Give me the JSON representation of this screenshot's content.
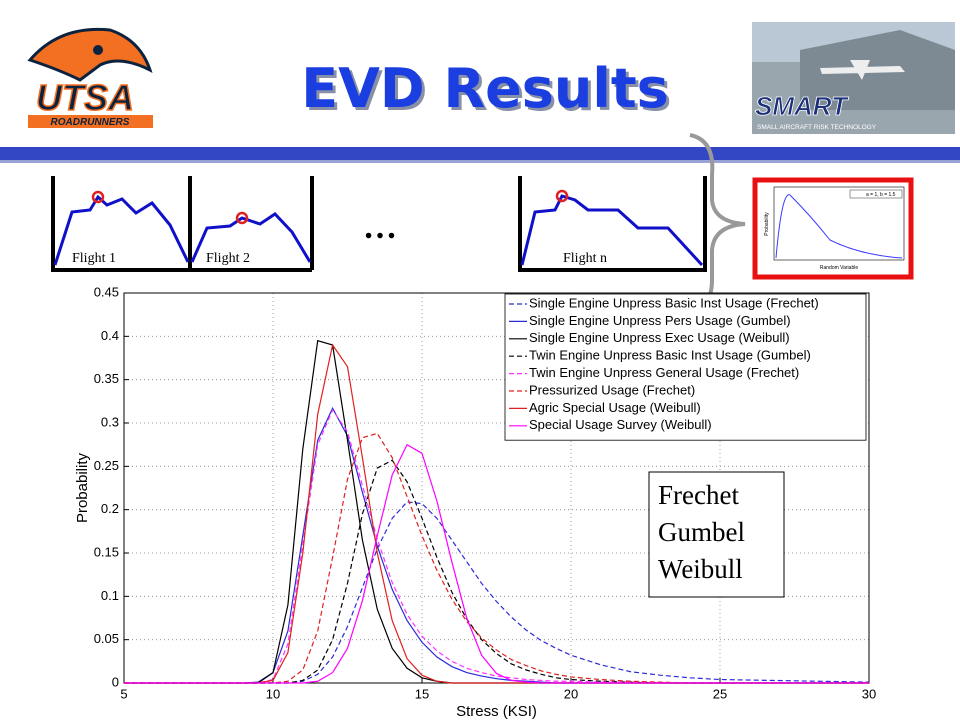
{
  "header": {
    "title": "EVD Results"
  },
  "logo": {
    "name": "UTSA",
    "subtitle": "ROADRUNNERS"
  },
  "photo": {
    "brand": "SMART",
    "tagline": "SMALL AIRCRAFT RISK TECHNOLOGY"
  },
  "flights": {
    "labels": [
      "Flight 1",
      "Flight 2",
      "Flight n"
    ],
    "ellipsis": "…"
  },
  "inset": {
    "legend": "a = 1, b = 1.5",
    "ylabel": "Probability",
    "xlabel": "Random Variable"
  },
  "chart_data": {
    "type": "line",
    "xlabel": "Stress (KSI)",
    "ylabel": "Probability",
    "x": [
      5,
      9,
      9.5,
      10,
      10.5,
      11,
      11.5,
      12,
      12.5,
      13,
      13.5,
      14,
      14.5,
      15,
      15.5,
      16,
      16.5,
      17,
      17.5,
      18,
      18.5,
      19,
      19.5,
      20,
      21,
      22,
      23,
      24,
      25,
      30
    ],
    "xlim": [
      5,
      30
    ],
    "ylim": [
      0,
      0.45
    ],
    "xticks": [
      5,
      10,
      15,
      20,
      25,
      30
    ],
    "yticks": [
      0,
      0.05,
      0.1,
      0.15,
      0.2,
      0.25,
      0.3,
      0.35,
      0.4,
      0.45
    ],
    "grid": true,
    "legend": "upper-right",
    "annotations": [
      "Frechet",
      "Gumbel",
      "Weibull"
    ],
    "series": [
      {
        "name": "Single Engine Unpress Basic Inst Usage (Frechet)",
        "color": "#2b2bd9",
        "style": "dashed",
        "values": [
          0,
          0,
          0,
          0,
          0,
          0.002,
          0.01,
          0.03,
          0.065,
          0.11,
          0.155,
          0.19,
          0.209,
          0.207,
          0.19,
          0.165,
          0.14,
          0.115,
          0.094,
          0.076,
          0.061,
          0.049,
          0.04,
          0.032,
          0.021,
          0.013,
          0.009,
          0.006,
          0.004,
          0.001
        ]
      },
      {
        "name": "Single Engine Unpress Pers Usage (Gumbel)",
        "color": "#2b2bd9",
        "style": "solid",
        "values": [
          0,
          0,
          0.001,
          0.012,
          0.06,
          0.17,
          0.28,
          0.317,
          0.285,
          0.22,
          0.158,
          0.108,
          0.072,
          0.047,
          0.03,
          0.019,
          0.012,
          0.008,
          0.005,
          0.003,
          0.002,
          0.001,
          0,
          0,
          0,
          0,
          0,
          0,
          0,
          0
        ]
      },
      {
        "name": "Single Engine Unpress Exec Usage (Weibull)",
        "color": "#000000",
        "style": "solid",
        "values": [
          0,
          0,
          0,
          0.012,
          0.09,
          0.27,
          0.395,
          0.39,
          0.28,
          0.165,
          0.085,
          0.04,
          0.017,
          0.006,
          0.002,
          0,
          0,
          0,
          0,
          0,
          0,
          0,
          0,
          0,
          0,
          0,
          0,
          0,
          0,
          0
        ]
      },
      {
        "name": "Twin Engine Unpress Basic Inst Usage (Gumbel)",
        "color": "#000000",
        "style": "dashed",
        "values": [
          0,
          0,
          0,
          0,
          0,
          0.003,
          0.015,
          0.05,
          0.115,
          0.195,
          0.248,
          0.257,
          0.232,
          0.19,
          0.145,
          0.105,
          0.074,
          0.05,
          0.034,
          0.022,
          0.015,
          0.01,
          0.006,
          0.004,
          0.002,
          0.001,
          0,
          0,
          0,
          0
        ]
      },
      {
        "name": "Twin Engine Unpress General Usage (Frechet)",
        "color": "#ff33ff",
        "style": "dashed",
        "values": [
          0,
          0,
          0,
          0.004,
          0.045,
          0.16,
          0.275,
          0.315,
          0.29,
          0.228,
          0.166,
          0.116,
          0.079,
          0.054,
          0.037,
          0.025,
          0.017,
          0.012,
          0.008,
          0.006,
          0.004,
          0.003,
          0.002,
          0.002,
          0.001,
          0.001,
          0,
          0,
          0,
          0
        ]
      },
      {
        "name": "Pressurized Usage (Frechet)",
        "color": "#e02020",
        "style": "dashed",
        "values": [
          0,
          0,
          0,
          0,
          0.002,
          0.015,
          0.06,
          0.145,
          0.235,
          0.283,
          0.288,
          0.26,
          0.215,
          0.17,
          0.13,
          0.097,
          0.071,
          0.052,
          0.038,
          0.027,
          0.02,
          0.014,
          0.01,
          0.007,
          0.004,
          0.002,
          0.001,
          0,
          0,
          0
        ]
      },
      {
        "name": "Agric Special Usage (Weibull)",
        "color": "#e02020",
        "style": "solid",
        "values": [
          0,
          0,
          0,
          0.003,
          0.035,
          0.15,
          0.31,
          0.39,
          0.365,
          0.26,
          0.15,
          0.072,
          0.028,
          0.009,
          0.002,
          0,
          0,
          0,
          0,
          0,
          0,
          0,
          0,
          0,
          0,
          0,
          0,
          0,
          0,
          0
        ]
      },
      {
        "name": "Special Usage Survey (Weibull)",
        "color": "#ff00ff",
        "style": "solid",
        "values": [
          0,
          0,
          0,
          0,
          0,
          0,
          0.002,
          0.012,
          0.04,
          0.095,
          0.17,
          0.24,
          0.275,
          0.265,
          0.21,
          0.14,
          0.075,
          0.032,
          0.011,
          0.003,
          0.001,
          0,
          0,
          0,
          0,
          0,
          0,
          0,
          0,
          0
        ]
      }
    ]
  }
}
